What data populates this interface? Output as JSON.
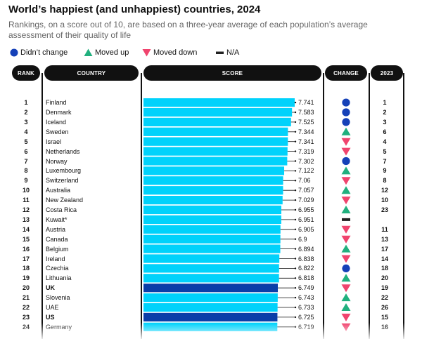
{
  "title": "World’s happiest (and unhappiest) countries, 2024",
  "subtitle": "Rankings, on a score out of 10, are based on a three-year average of each population’s average assessment of their quality of life",
  "legend": {
    "no_change": "Didn’t change",
    "up": "Moved up",
    "down": "Moved down",
    "na": "N/A"
  },
  "headers": {
    "rank": "RANK",
    "country": "COUNTRY",
    "score": "SCORE",
    "change": "CHANGE",
    "prev": "2023"
  },
  "colors": {
    "bar": "#00d2fb",
    "bar_highlight": "#0a3ea8",
    "no_change": "#1541b8",
    "up": "#21b07e",
    "down": "#f0446e",
    "na": "#222222",
    "header_bg": "#111111"
  },
  "chart_data": {
    "type": "bar",
    "orientation": "horizontal",
    "title": "World’s happiest (and unhappiest) countries, 2024",
    "subtitle": "Rankings, on a score out of 10, are based on a three-year average of each population’s average assessment of their quality of life",
    "xlim": [
      0,
      10
    ],
    "rows": [
      {
        "rank": "1",
        "country": "Finland",
        "score": 7.741,
        "score_label": "7.741",
        "change": "same",
        "prev": "1",
        "highlight": false
      },
      {
        "rank": "2",
        "country": "Denmark",
        "score": 7.583,
        "score_label": "7.583",
        "change": "same",
        "prev": "2",
        "highlight": false
      },
      {
        "rank": "3",
        "country": "Iceland",
        "score": 7.525,
        "score_label": "7.525",
        "change": "same",
        "prev": "3",
        "highlight": false
      },
      {
        "rank": "4",
        "country": "Sweden",
        "score": 7.344,
        "score_label": "7.344",
        "change": "up",
        "prev": "6",
        "highlight": false
      },
      {
        "rank": "5",
        "country": "Israel",
        "score": 7.341,
        "score_label": "7.341",
        "change": "down",
        "prev": "4",
        "highlight": false
      },
      {
        "rank": "6",
        "country": "Netherlands",
        "score": 7.319,
        "score_label": "7.319",
        "change": "down",
        "prev": "5",
        "highlight": false
      },
      {
        "rank": "7",
        "country": "Norway",
        "score": 7.302,
        "score_label": "7.302",
        "change": "same",
        "prev": "7",
        "highlight": false
      },
      {
        "rank": "8",
        "country": "Luxembourg",
        "score": 7.122,
        "score_label": "7.122",
        "change": "up",
        "prev": "9",
        "highlight": false
      },
      {
        "rank": "9",
        "country": "Switzerland",
        "score": 7.06,
        "score_label": "7.06",
        "change": "down",
        "prev": "8",
        "highlight": false
      },
      {
        "rank": "10",
        "country": "Australia",
        "score": 7.057,
        "score_label": "7.057",
        "change": "up",
        "prev": "12",
        "highlight": false
      },
      {
        "rank": "11",
        "country": "New Zealand",
        "score": 7.029,
        "score_label": "7.029",
        "change": "down",
        "prev": "10",
        "highlight": false
      },
      {
        "rank": "12",
        "country": "Costa Rica",
        "score": 6.955,
        "score_label": "6.955",
        "change": "up",
        "prev": "23",
        "highlight": false
      },
      {
        "rank": "13",
        "country": "Kuwait*",
        "score": 6.951,
        "score_label": "6.951",
        "change": "na",
        "prev": "",
        "highlight": false
      },
      {
        "rank": "14",
        "country": "Austria",
        "score": 6.905,
        "score_label": "6.905",
        "change": "down",
        "prev": "11",
        "highlight": false
      },
      {
        "rank": "15",
        "country": "Canada",
        "score": 6.9,
        "score_label": "6.9",
        "change": "down",
        "prev": "13",
        "highlight": false
      },
      {
        "rank": "16",
        "country": "Belgium",
        "score": 6.894,
        "score_label": "6.894",
        "change": "up",
        "prev": "17",
        "highlight": false
      },
      {
        "rank": "17",
        "country": "Ireland",
        "score": 6.838,
        "score_label": "6.838",
        "change": "down",
        "prev": "14",
        "highlight": false
      },
      {
        "rank": "18",
        "country": "Czechia",
        "score": 6.822,
        "score_label": "6.822",
        "change": "same",
        "prev": "18",
        "highlight": false
      },
      {
        "rank": "19",
        "country": "Lithuania",
        "score": 6.818,
        "score_label": "6.818",
        "change": "up",
        "prev": "20",
        "highlight": false
      },
      {
        "rank": "20",
        "country": "UK",
        "score": 6.749,
        "score_label": "6.749",
        "change": "down",
        "prev": "19",
        "highlight": true
      },
      {
        "rank": "21",
        "country": "Slovenia",
        "score": 6.743,
        "score_label": "6.743",
        "change": "up",
        "prev": "22",
        "highlight": false
      },
      {
        "rank": "22",
        "country": "UAE",
        "score": 6.733,
        "score_label": "6.733",
        "change": "up",
        "prev": "26",
        "highlight": false
      },
      {
        "rank": "23",
        "country": "US",
        "score": 6.725,
        "score_label": "6.725",
        "change": "down",
        "prev": "15",
        "highlight": true
      },
      {
        "rank": "24",
        "country": "Germany",
        "score": 6.719,
        "score_label": "6.719",
        "change": "down",
        "prev": "16",
        "highlight": false
      }
    ]
  }
}
